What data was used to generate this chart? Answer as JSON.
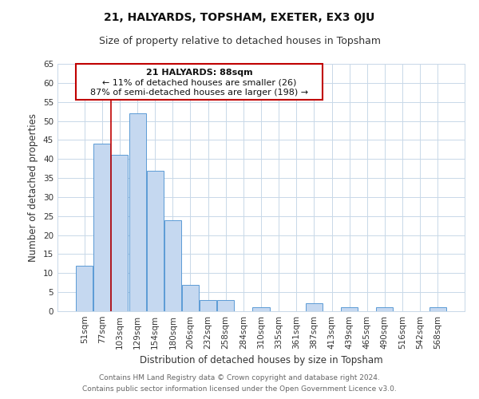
{
  "title": "21, HALYARDS, TOPSHAM, EXETER, EX3 0JU",
  "subtitle": "Size of property relative to detached houses in Topsham",
  "xlabel": "Distribution of detached houses by size in Topsham",
  "ylabel": "Number of detached properties",
  "bar_labels": [
    "51sqm",
    "77sqm",
    "103sqm",
    "129sqm",
    "154sqm",
    "180sqm",
    "206sqm",
    "232sqm",
    "258sqm",
    "284sqm",
    "310sqm",
    "335sqm",
    "361sqm",
    "387sqm",
    "413sqm",
    "439sqm",
    "465sqm",
    "490sqm",
    "516sqm",
    "542sqm",
    "568sqm"
  ],
  "bar_values": [
    12,
    44,
    41,
    52,
    37,
    24,
    7,
    3,
    3,
    0,
    1,
    0,
    0,
    2,
    0,
    1,
    0,
    1,
    0,
    0,
    1
  ],
  "bar_color": "#c5d8f0",
  "bar_edge_color": "#5b9bd5",
  "ylim": [
    0,
    65
  ],
  "yticks": [
    0,
    5,
    10,
    15,
    20,
    25,
    30,
    35,
    40,
    45,
    50,
    55,
    60,
    65
  ],
  "annotation_line1": "21 HALYARDS: 88sqm",
  "annotation_line2": "← 11% of detached houses are smaller (26)",
  "annotation_line3": "87% of semi-detached houses are larger (198) →",
  "marker_line_color": "#c00000",
  "annotation_box_edge_color": "#c00000",
  "footer_line1": "Contains HM Land Registry data © Crown copyright and database right 2024.",
  "footer_line2": "Contains public sector information licensed under the Open Government Licence v3.0.",
  "bg_color": "#ffffff",
  "grid_color": "#c8d8e8",
  "title_fontsize": 10,
  "subtitle_fontsize": 9,
  "axis_label_fontsize": 8.5,
  "tick_fontsize": 7.5,
  "annotation_fontsize": 8,
  "footer_fontsize": 6.5
}
